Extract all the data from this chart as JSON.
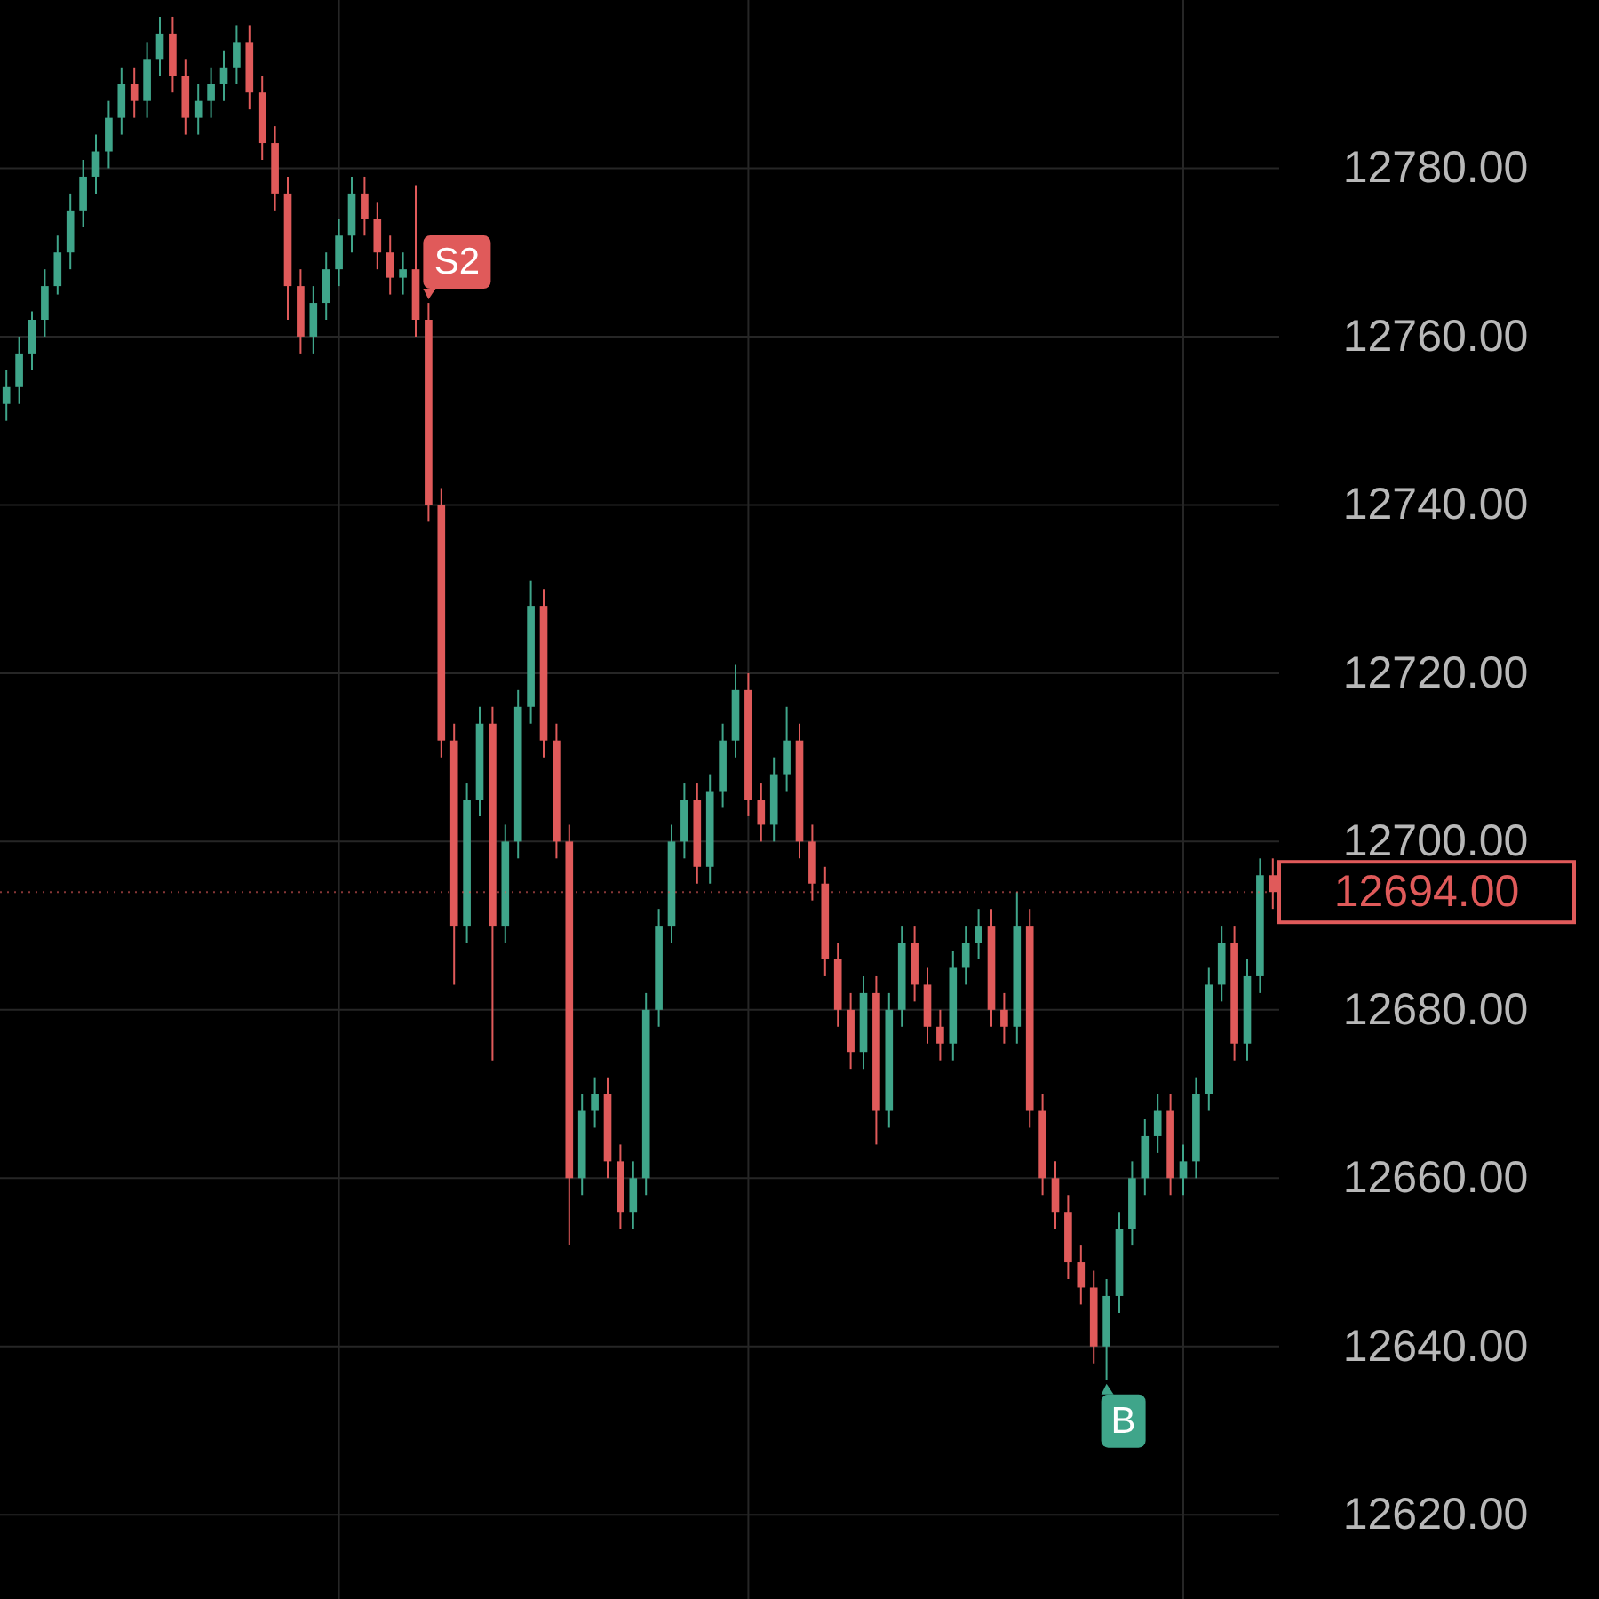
{
  "chart_data": {
    "type": "candlestick",
    "categories": [
      null,
      null,
      null,
      null,
      null,
      null,
      null,
      null,
      null,
      null,
      null,
      null,
      null,
      null,
      null,
      null,
      null,
      null,
      null,
      null,
      null,
      null,
      null,
      null,
      null,
      null,
      null,
      null,
      null,
      null,
      null,
      null,
      null,
      null,
      null,
      null,
      null,
      null,
      null,
      null,
      null,
      null,
      null,
      null,
      null,
      null,
      null,
      null,
      null,
      null,
      null,
      null,
      null,
      null,
      null,
      null,
      null,
      null,
      null,
      null,
      null,
      null,
      null,
      null,
      null,
      null,
      null,
      null,
      null,
      null,
      null,
      null,
      null,
      null,
      null,
      null,
      null,
      null,
      null,
      null,
      null,
      null,
      null,
      null,
      null,
      null,
      null,
      null,
      null,
      null,
      null,
      null,
      null,
      null,
      null,
      null,
      null,
      null,
      null,
      null
    ],
    "ohlc": [
      [
        12752,
        12756,
        12750,
        12754
      ],
      [
        12754,
        12760,
        12752,
        12758
      ],
      [
        12758,
        12763,
        12756,
        12762
      ],
      [
        12762,
        12768,
        12760,
        12766
      ],
      [
        12766,
        12772,
        12765,
        12770
      ],
      [
        12770,
        12777,
        12768,
        12775
      ],
      [
        12775,
        12781,
        12773,
        12779
      ],
      [
        12779,
        12784,
        12777,
        12782
      ],
      [
        12782,
        12788,
        12780,
        12786
      ],
      [
        12786,
        12792,
        12784,
        12790
      ],
      [
        12790,
        12792,
        12786,
        12788
      ],
      [
        12788,
        12795,
        12786,
        12793
      ],
      [
        12793,
        12798,
        12791,
        12796
      ],
      [
        12796,
        12798,
        12789,
        12791
      ],
      [
        12791,
        12793,
        12784,
        12786
      ],
      [
        12786,
        12790,
        12784,
        12788
      ],
      [
        12788,
        12792,
        12786,
        12790
      ],
      [
        12790,
        12794,
        12788,
        12792
      ],
      [
        12792,
        12797,
        12790,
        12795
      ],
      [
        12795,
        12797,
        12787,
        12789
      ],
      [
        12789,
        12791,
        12781,
        12783
      ],
      [
        12783,
        12785,
        12775,
        12777
      ],
      [
        12777,
        12779,
        12762,
        12766
      ],
      [
        12766,
        12768,
        12758,
        12760
      ],
      [
        12760,
        12766,
        12758,
        12764
      ],
      [
        12764,
        12770,
        12762,
        12768
      ],
      [
        12768,
        12774,
        12766,
        12772
      ],
      [
        12772,
        12779,
        12770,
        12777
      ],
      [
        12777,
        12779,
        12772,
        12774
      ],
      [
        12774,
        12776,
        12768,
        12770
      ],
      [
        12770,
        12772,
        12765,
        12767
      ],
      [
        12767,
        12770,
        12765,
        12768
      ],
      [
        12768,
        12778,
        12760,
        12762
      ],
      [
        12762,
        12764,
        12738,
        12740
      ],
      [
        12740,
        12742,
        12710,
        12712
      ],
      [
        12712,
        12714,
        12683,
        12690
      ],
      [
        12690,
        12707,
        12688,
        12705
      ],
      [
        12705,
        12716,
        12703,
        12714
      ],
      [
        12714,
        12716,
        12674,
        12690
      ],
      [
        12690,
        12702,
        12688,
        12700
      ],
      [
        12700,
        12718,
        12698,
        12716
      ],
      [
        12716,
        12731,
        12714,
        12728
      ],
      [
        12728,
        12730,
        12710,
        12712
      ],
      [
        12712,
        12714,
        12698,
        12700
      ],
      [
        12700,
        12702,
        12652,
        12660
      ],
      [
        12660,
        12670,
        12658,
        12668
      ],
      [
        12668,
        12672,
        12666,
        12670
      ],
      [
        12670,
        12672,
        12660,
        12662
      ],
      [
        12662,
        12664,
        12654,
        12656
      ],
      [
        12656,
        12662,
        12654,
        12660
      ],
      [
        12660,
        12682,
        12658,
        12680
      ],
      [
        12680,
        12692,
        12678,
        12690
      ],
      [
        12690,
        12702,
        12688,
        12700
      ],
      [
        12700,
        12707,
        12698,
        12705
      ],
      [
        12705,
        12707,
        12695,
        12697
      ],
      [
        12697,
        12708,
        12695,
        12706
      ],
      [
        12706,
        12714,
        12704,
        12712
      ],
      [
        12712,
        12721,
        12710,
        12718
      ],
      [
        12718,
        12720,
        12703,
        12705
      ],
      [
        12705,
        12707,
        12700,
        12702
      ],
      [
        12702,
        12710,
        12700,
        12708
      ],
      [
        12708,
        12716,
        12706,
        12712
      ],
      [
        12712,
        12714,
        12698,
        12700
      ],
      [
        12700,
        12702,
        12693,
        12695
      ],
      [
        12695,
        12697,
        12684,
        12686
      ],
      [
        12686,
        12688,
        12678,
        12680
      ],
      [
        12680,
        12682,
        12673,
        12675
      ],
      [
        12675,
        12684,
        12673,
        12682
      ],
      [
        12682,
        12684,
        12664,
        12668
      ],
      [
        12668,
        12682,
        12666,
        12680
      ],
      [
        12680,
        12690,
        12678,
        12688
      ],
      [
        12688,
        12690,
        12681,
        12683
      ],
      [
        12683,
        12685,
        12676,
        12678
      ],
      [
        12678,
        12680,
        12674,
        12676
      ],
      [
        12676,
        12687,
        12674,
        12685
      ],
      [
        12685,
        12690,
        12683,
        12688
      ],
      [
        12688,
        12692,
        12686,
        12690
      ],
      [
        12690,
        12692,
        12678,
        12680
      ],
      [
        12680,
        12682,
        12676,
        12678
      ],
      [
        12678,
        12694,
        12676,
        12690
      ],
      [
        12690,
        12692,
        12666,
        12668
      ],
      [
        12668,
        12670,
        12658,
        12660
      ],
      [
        12660,
        12662,
        12654,
        12656
      ],
      [
        12656,
        12658,
        12648,
        12650
      ],
      [
        12650,
        12652,
        12645,
        12647
      ],
      [
        12647,
        12649,
        12638,
        12640
      ],
      [
        12640,
        12648,
        12636,
        12646
      ],
      [
        12646,
        12656,
        12644,
        12654
      ],
      [
        12654,
        12662,
        12652,
        12660
      ],
      [
        12660,
        12667,
        12658,
        12665
      ],
      [
        12665,
        12670,
        12663,
        12668
      ],
      [
        12668,
        12670,
        12658,
        12660
      ],
      [
        12660,
        12664,
        12658,
        12662
      ],
      [
        12662,
        12672,
        12660,
        12670
      ],
      [
        12670,
        12685,
        12668,
        12683
      ],
      [
        12683,
        12690,
        12681,
        12688
      ],
      [
        12688,
        12690,
        12674,
        12676
      ],
      [
        12676,
        12686,
        12674,
        12684
      ],
      [
        12684,
        12698,
        12682,
        12696
      ],
      [
        12696,
        12698,
        12692,
        12694
      ]
    ],
    "colors": [
      "#3fa58a",
      "#3fa58a",
      "#3fa58a",
      "#3fa58a",
      "#3fa58a",
      "#3fa58a",
      "#3fa58a",
      "#3fa58a",
      "#3fa58a",
      "#3fa58a",
      "#e05a5a",
      "#3fa58a",
      "#3fa58a",
      "#e05a5a",
      "#e05a5a",
      "#3fa58a",
      "#3fa58a",
      "#3fa58a",
      "#3fa58a",
      "#e05a5a",
      "#e05a5a",
      "#e05a5a",
      "#e05a5a",
      "#e05a5a",
      "#3fa58a",
      "#3fa58a",
      "#3fa58a",
      "#3fa58a",
      "#e05a5a",
      "#e05a5a",
      "#e05a5a",
      "#3fa58a",
      "#e05a5a",
      "#e05a5a",
      "#e05a5a",
      "#e05a5a",
      "#3fa58a",
      "#3fa58a",
      "#e05a5a",
      "#3fa58a",
      "#3fa58a",
      "#3fa58a",
      "#e05a5a",
      "#e05a5a",
      "#e05a5a",
      "#3fa58a",
      "#3fa58a",
      "#e05a5a",
      "#e05a5a",
      "#3fa58a",
      "#3fa58a",
      "#3fa58a",
      "#3fa58a",
      "#3fa58a",
      "#e05a5a",
      "#3fa58a",
      "#3fa58a",
      "#3fa58a",
      "#e05a5a",
      "#e05a5a",
      "#3fa58a",
      "#3fa58a",
      "#e05a5a",
      "#e05a5a",
      "#e05a5a",
      "#e05a5a",
      "#e05a5a",
      "#3fa58a",
      "#e05a5a",
      "#3fa58a",
      "#3fa58a",
      "#e05a5a",
      "#e05a5a",
      "#e05a5a",
      "#3fa58a",
      "#3fa58a",
      "#3fa58a",
      "#e05a5a",
      "#e05a5a",
      "#3fa58a",
      "#e05a5a",
      "#e05a5a",
      "#e05a5a",
      "#e05a5a",
      "#e05a5a",
      "#e05a5a",
      "#3fa58a",
      "#3fa58a",
      "#3fa58a",
      "#3fa58a",
      "#3fa58a",
      "#e05a5a",
      "#3fa58a",
      "#3fa58a",
      "#3fa58a",
      "#3fa58a",
      "#e05a5a",
      "#3fa58a",
      "#3fa58a",
      "#e05a5a"
    ],
    "ylim": [
      12610,
      12800
    ],
    "yticks": [
      {
        "value": 12620,
        "label": "12620.00"
      },
      {
        "value": 12640,
        "label": "12640.00"
      },
      {
        "value": 12660,
        "label": "12660.00"
      },
      {
        "value": 12680,
        "label": "12680.00"
      },
      {
        "value": 12700,
        "label": "12700.00"
      },
      {
        "value": 12720,
        "label": "12720.00"
      },
      {
        "value": 12740,
        "label": "12740.00"
      },
      {
        "value": 12760,
        "label": "12760.00"
      },
      {
        "value": 12780,
        "label": "12780.00"
      }
    ],
    "grid": true,
    "ref_lines": [
      {
        "axis": "y",
        "value": 12694,
        "label": "12694.00",
        "color": "#e05a5a"
      }
    ],
    "annotations": [
      "S2",
      "B"
    ]
  }
}
